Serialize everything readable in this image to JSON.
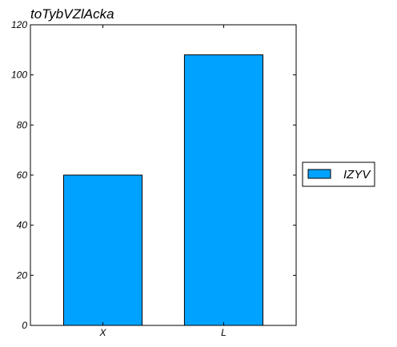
{
  "chart_data": {
    "type": "bar",
    "title": "toTybVZlAcka",
    "xlabel": "",
    "ylabel": "",
    "categories": [
      "X",
      "L"
    ],
    "series": [
      {
        "name": "IZYV",
        "values": [
          60,
          108
        ],
        "color": "#00a2ff"
      }
    ],
    "ylim": [
      0,
      120
    ],
    "yticks": [
      0,
      20,
      40,
      60,
      80,
      100,
      120
    ],
    "grid": false,
    "legend": "right"
  }
}
